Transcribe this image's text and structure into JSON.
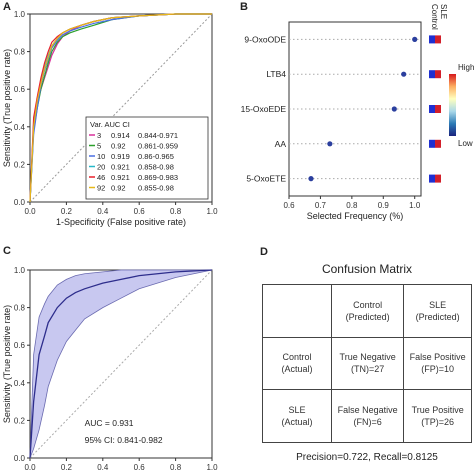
{
  "panels": {
    "A": "A",
    "B": "B",
    "C": "C",
    "D": "D"
  },
  "colors": {
    "accent_band": "#c8c8f0",
    "curve_c": "#2d2d8c",
    "dot": "#2b3f9e",
    "ctrl_tile": "#1f2fd1",
    "sle_tile": "#d21f2a"
  },
  "chart_data": [
    {
      "type": "line",
      "panel": "A",
      "xlabel": "1-Specificity (False positive rate)",
      "ylabel": "Sensitivity (True positive rate)",
      "xlim": [
        0,
        1
      ],
      "ylim": [
        0,
        1
      ],
      "xticks": [
        "0.0",
        "0.2",
        "0.4",
        "0.6",
        "0.8",
        "1.0"
      ],
      "yticks": [
        "0.0",
        "0.2",
        "0.4",
        "0.6",
        "0.8",
        "1.0"
      ],
      "legend": {
        "header": "Var. AUC    CI",
        "rows": [
          {
            "var": "3",
            "auc": "0.914",
            "ci": "0.844-0.971"
          },
          {
            "var": "5",
            "auc": "0.92",
            "ci": "0.861-0.959"
          },
          {
            "var": "10",
            "auc": "0.919",
            "ci": "0.86-0.965"
          },
          {
            "var": "20",
            "auc": "0.921",
            "ci": "0.858-0.98"
          },
          {
            "var": "46",
            "auc": "0.921",
            "ci": "0.869-0.983"
          },
          {
            "var": "92",
            "auc": "0.92",
            "ci": "0.855-0.98"
          }
        ]
      },
      "series": [
        {
          "name": "3",
          "color": "#d9309a",
          "x": [
            0,
            0.02,
            0.04,
            0.06,
            0.08,
            0.1,
            0.12,
            0.15,
            0.18,
            0.22,
            0.28,
            0.35,
            0.45,
            0.6,
            0.8,
            1
          ],
          "y": [
            0,
            0.4,
            0.52,
            0.6,
            0.66,
            0.72,
            0.78,
            0.84,
            0.88,
            0.91,
            0.94,
            0.96,
            0.98,
            0.99,
            1,
            1
          ]
        },
        {
          "name": "5",
          "color": "#2ca02c",
          "x": [
            0,
            0.02,
            0.04,
            0.06,
            0.08,
            0.1,
            0.12,
            0.15,
            0.18,
            0.22,
            0.28,
            0.35,
            0.45,
            0.6,
            0.8,
            1
          ],
          "y": [
            0,
            0.38,
            0.5,
            0.6,
            0.67,
            0.74,
            0.8,
            0.85,
            0.88,
            0.9,
            0.92,
            0.94,
            0.97,
            0.99,
            1,
            1
          ]
        },
        {
          "name": "10",
          "color": "#4a6fe3",
          "x": [
            0,
            0.02,
            0.04,
            0.06,
            0.08,
            0.1,
            0.12,
            0.15,
            0.18,
            0.22,
            0.28,
            0.35,
            0.45,
            0.6,
            0.8,
            1
          ],
          "y": [
            0,
            0.36,
            0.5,
            0.62,
            0.7,
            0.76,
            0.82,
            0.86,
            0.89,
            0.91,
            0.93,
            0.95,
            0.97,
            0.99,
            1,
            1
          ]
        },
        {
          "name": "20",
          "color": "#27b8c9",
          "x": [
            0,
            0.02,
            0.04,
            0.06,
            0.08,
            0.1,
            0.12,
            0.15,
            0.18,
            0.22,
            0.28,
            0.35,
            0.45,
            0.6,
            0.8,
            1
          ],
          "y": [
            0,
            0.42,
            0.55,
            0.64,
            0.72,
            0.78,
            0.83,
            0.87,
            0.9,
            0.92,
            0.94,
            0.96,
            0.98,
            0.99,
            1,
            1
          ]
        },
        {
          "name": "46",
          "color": "#e8212b",
          "x": [
            0,
            0.02,
            0.04,
            0.06,
            0.08,
            0.1,
            0.12,
            0.15,
            0.18,
            0.22,
            0.28,
            0.35,
            0.45,
            0.6,
            0.8,
            1
          ],
          "y": [
            0,
            0.45,
            0.56,
            0.66,
            0.74,
            0.8,
            0.85,
            0.88,
            0.9,
            0.92,
            0.94,
            0.96,
            0.98,
            0.99,
            1,
            1
          ]
        },
        {
          "name": "92",
          "color": "#e6b81a",
          "x": [
            0,
            0.02,
            0.04,
            0.06,
            0.08,
            0.1,
            0.12,
            0.15,
            0.18,
            0.22,
            0.28,
            0.35,
            0.45,
            0.6,
            0.8,
            1
          ],
          "y": [
            0,
            0.4,
            0.54,
            0.63,
            0.71,
            0.77,
            0.83,
            0.87,
            0.9,
            0.92,
            0.94,
            0.96,
            0.98,
            0.99,
            1,
            1
          ]
        }
      ]
    },
    {
      "type": "scatter",
      "panel": "B",
      "xlabel": "Selected Frequency (%)",
      "xlim": [
        0.6,
        1.02
      ],
      "xticks": [
        "0.6",
        "0.7",
        "0.8",
        "0.9",
        "1.0"
      ],
      "categories": [
        "9-OxoODE",
        "LTB4",
        "15-OxoEDE",
        "AA",
        "5-OxoETE"
      ],
      "values": [
        1.0,
        0.965,
        0.935,
        0.73,
        0.67
      ],
      "grid": "dotted horizontal",
      "heatmap_headers": [
        "Control",
        "SLE"
      ],
      "colorbar": {
        "high": "High",
        "low": "Low",
        "colors": [
          "#d7191c",
          "#fdae61",
          "#ffffbf",
          "#abd9e9",
          "#2c7bb6",
          "#1a237e"
        ]
      }
    },
    {
      "type": "area",
      "panel": "C",
      "xlabel": "1-Specificity (False positive rate)",
      "ylabel": "Sensitivity (True positive rate)",
      "xlim": [
        0,
        1
      ],
      "ylim": [
        0,
        1
      ],
      "xticks": [
        "0.0",
        "0.2",
        "0.4",
        "0.6",
        "0.8",
        "1.0"
      ],
      "yticks": [
        "0.0",
        "0.2",
        "0.4",
        "0.6",
        "0.8",
        "1.0"
      ],
      "annotations": [
        "AUC = 0.931",
        "95% CI: 0.841-0.982"
      ],
      "x": [
        0,
        0.02,
        0.05,
        0.08,
        0.1,
        0.15,
        0.2,
        0.25,
        0.3,
        0.4,
        0.5,
        0.6,
        0.7,
        0.8,
        1
      ],
      "y": [
        0,
        0.3,
        0.55,
        0.65,
        0.72,
        0.8,
        0.85,
        0.88,
        0.9,
        0.93,
        0.95,
        0.97,
        0.98,
        0.99,
        1
      ],
      "upper": [
        0,
        0.55,
        0.75,
        0.82,
        0.86,
        0.92,
        0.95,
        0.97,
        0.98,
        0.99,
        1,
        1,
        1,
        1,
        1
      ],
      "lower": [
        0,
        0.05,
        0.15,
        0.28,
        0.38,
        0.52,
        0.62,
        0.68,
        0.74,
        0.8,
        0.85,
        0.9,
        0.93,
        0.96,
        1
      ]
    }
  ],
  "confusion_matrix": {
    "title": "Confusion Matrix",
    "col_headers": [
      [
        "Control",
        "(Predicted)"
      ],
      [
        "SLE",
        "(Predicted)"
      ]
    ],
    "row_headers": [
      [
        "Control",
        "(Actual)"
      ],
      [
        "SLE",
        "(Actual)"
      ]
    ],
    "cells": [
      [
        [
          "True Negative",
          "(TN)=27"
        ],
        [
          "False Positive",
          "(FP)=10"
        ]
      ],
      [
        [
          "False Negative",
          "(FN)=6"
        ],
        [
          "True Positive",
          "(TP)=26"
        ]
      ]
    ],
    "footer": "Precision=0.722, Recall=0.8125"
  }
}
